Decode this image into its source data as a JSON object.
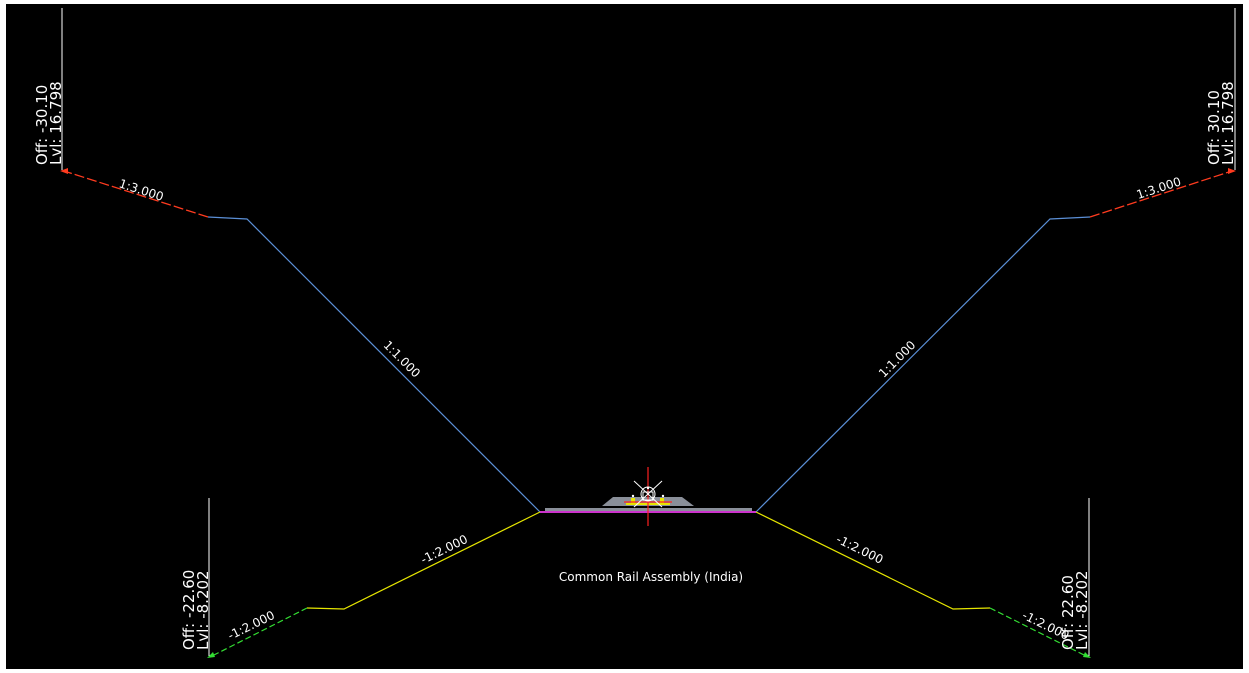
{
  "assembly_name": "Common Rail Assembly (India)",
  "colors": {
    "background": "#000000",
    "cut_slope": "#5b8fd6",
    "fill_slope": "#e6e600",
    "cut_daylight": "#ff3b1f",
    "fill_daylight": "#33dd33",
    "formation": "#cc33cc",
    "ballast": "#8a8f99",
    "track": "#e6e600",
    "centerline": "#ff2020",
    "text": "#ffffff"
  },
  "labels": {
    "top_left": {
      "off": "Off:  -30.10",
      "lvl": "Lvl:  16.798"
    },
    "top_right": {
      "off": "Off:  30.10",
      "lvl": "Lvl:  16.798"
    },
    "bottom_left": {
      "off": "Off:  -22.60",
      "lvl": "Lvl:  -8.202"
    },
    "bottom_right": {
      "off": "Off:  22.60",
      "lvl": "Lvl:  -8.202"
    }
  },
  "slopes": {
    "cut_daylight_left": "1:3.000",
    "cut_daylight_right": "1:3.000",
    "cut_left": "1:1.000",
    "cut_right": "1:1.000",
    "fill_left": "-1:2.000",
    "fill_right": "-1:2.000",
    "fill_daylight_left": "-1:2.000",
    "fill_daylight_right": "-1:2.000"
  }
}
